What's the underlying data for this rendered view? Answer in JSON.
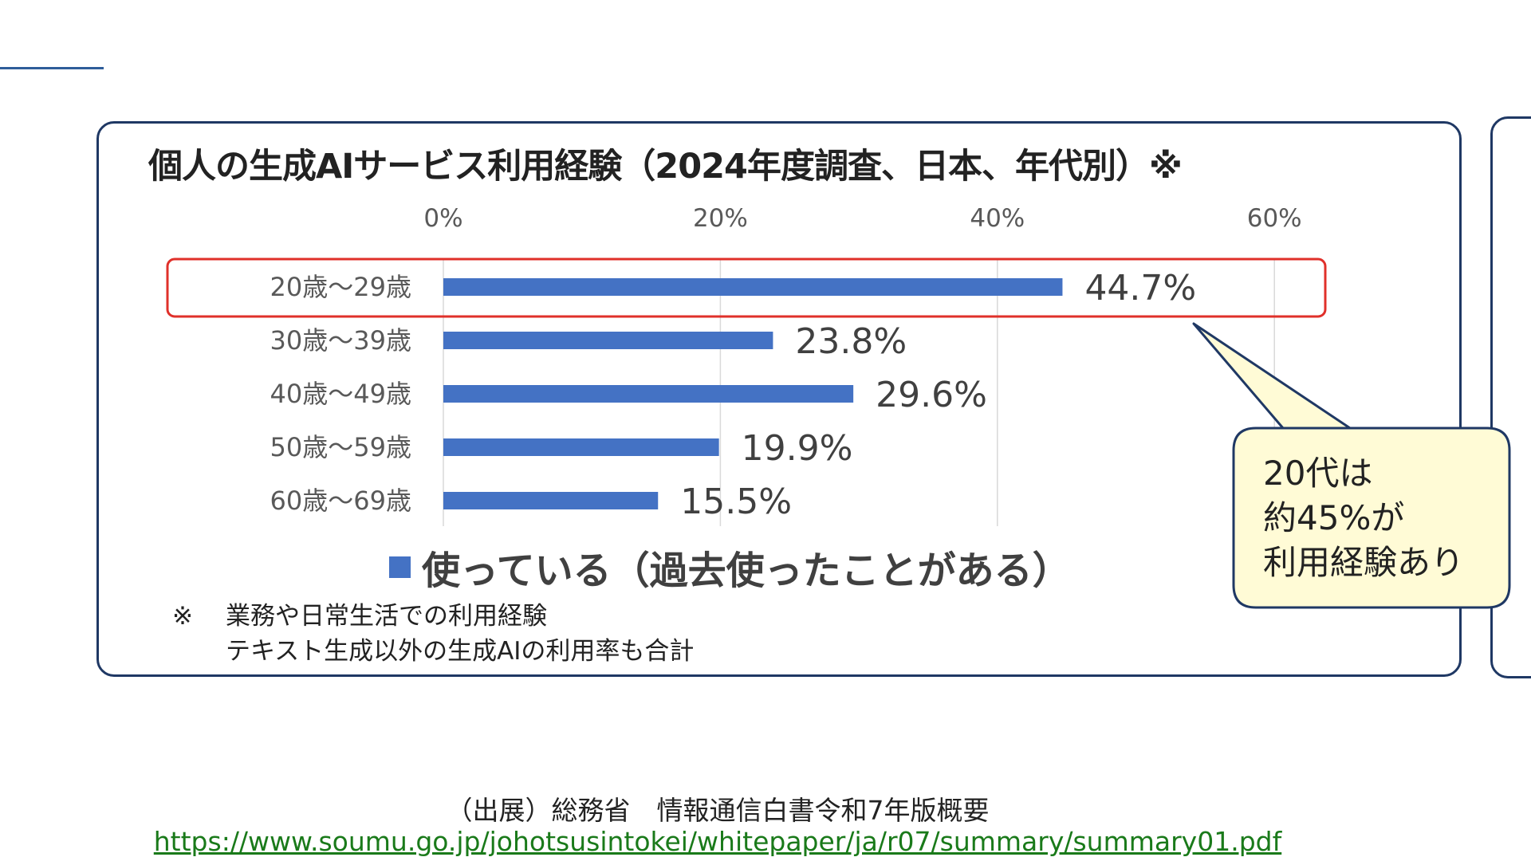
{
  "chart_data": {
    "type": "bar",
    "orientation": "horizontal",
    "title": "個人の生成AIサービス利用経験（2024年度調査、日本、年代別）※",
    "categories": [
      "20歳～29歳",
      "30歳～39歳",
      "40歳～49歳",
      "50歳～59歳",
      "60歳～69歳"
    ],
    "series": [
      {
        "name": "使っている（過去使ったことがある）",
        "values": [
          44.7,
          23.8,
          29.6,
          19.9,
          15.5
        ]
      }
    ],
    "value_labels": [
      "44.7%",
      "23.8%",
      "29.6%",
      "19.9%",
      "15.5%"
    ],
    "x_ticks": [
      "0%",
      "20%",
      "40%",
      "60%"
    ],
    "xlim": [
      0,
      60
    ],
    "grid": true,
    "legend": "bottom",
    "highlighted_category": "20歳～29歳",
    "colors": {
      "bar": "#4472c4",
      "highlight": "#e0302a",
      "callout_fill": "#fffbd6",
      "frame": "#1f3864"
    }
  },
  "callout": {
    "text": "20代は\n約45%が\n利用経験あり"
  },
  "note": {
    "mark": "※",
    "line1": "業務や日常生活での利用経験",
    "line2": "テキスト生成以外の生成AIの利用率も合計"
  },
  "source": {
    "label": "（出展）総務省　情報通信白書令和7年版概要",
    "url": "https://www.soumu.go.jp/johotsusintokei/whitepaper/ja/r07/summary/summary01.pdf"
  }
}
